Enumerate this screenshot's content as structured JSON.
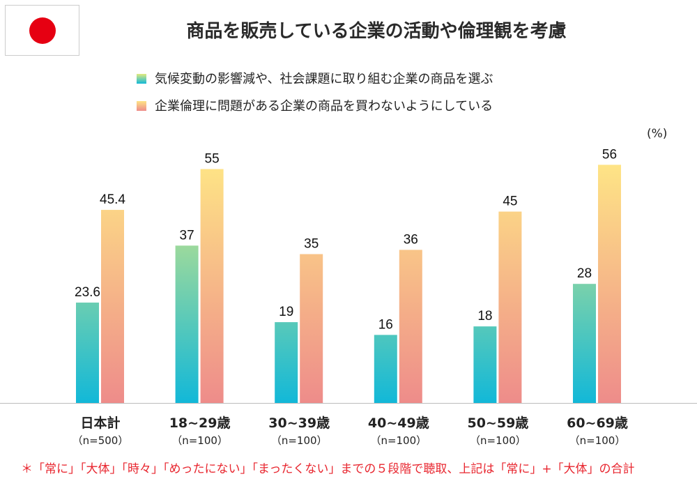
{
  "title": "商品を販売している企業の活動や倫理観を考慮",
  "flag": {
    "background": "#ffffff",
    "circle": "#e60012"
  },
  "colors": {
    "series1_top": "#e2ea7e",
    "series1_bottom": "#12b8d8",
    "series2_top": "#fee486",
    "series2_bottom": "#ee8c8a",
    "note": "#e8252e"
  },
  "chart_data": {
    "type": "bar",
    "title": "商品を販売している企業の活動や倫理観を考慮",
    "unit": "(%)",
    "categories": [
      "日本計",
      "18~29歳",
      "30~39歳",
      "40~49歳",
      "50~59歳",
      "60~69歳"
    ],
    "sample_sizes": [
      "（n=500）",
      "（n=100）",
      "（n=100）",
      "（n=100）",
      "（n=100）",
      "（n=100）"
    ],
    "series": [
      {
        "name": "気候変動の影響減や、社会課題に取り組む企業の商品を選ぶ",
        "values": [
          23.6,
          37,
          19,
          16,
          18,
          28
        ],
        "labels": [
          "23.6",
          "37",
          "19",
          "16",
          "18",
          "28"
        ]
      },
      {
        "name": "企業倫理に問題がある企業の商品を買わないようにしている",
        "values": [
          45.4,
          55,
          35,
          36,
          45,
          56
        ],
        "labels": [
          "45.4",
          "55",
          "35",
          "36",
          "45",
          "56"
        ]
      }
    ],
    "ylim": [
      0,
      60
    ],
    "grid": false,
    "legend": "top"
  },
  "note": "＊「常に」「大体」「時々」「めったにない」「まったくない」までの５段階で聴取、上記は「常に」+「大体」の合計"
}
